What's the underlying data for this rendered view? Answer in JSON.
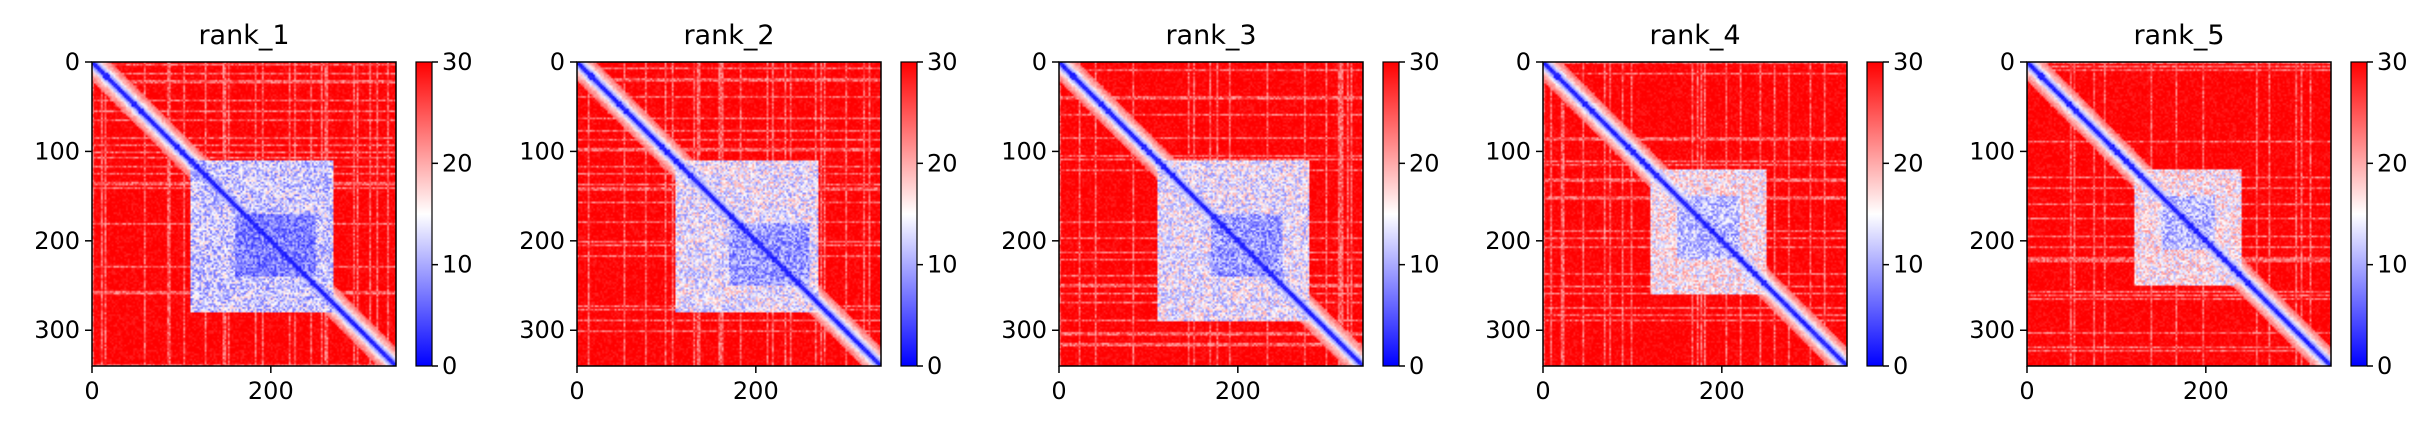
{
  "chart_data": [
    {
      "type": "heatmap",
      "title": "rank_1",
      "x_ticks": [
        0,
        200
      ],
      "y_ticks": [
        0,
        100,
        200,
        300
      ],
      "xlim": [
        0,
        340
      ],
      "ylim": [
        340,
        0
      ],
      "colorbar": {
        "ticks": [
          0,
          10,
          20,
          30
        ],
        "range": [
          0,
          30
        ],
        "colormap": "bwr"
      },
      "matrix_size": 340,
      "diagonal_band": true,
      "low_value_blocks": [
        {
          "x0": 110,
          "x1": 270,
          "y0": 110,
          "y1": 280,
          "min": 6,
          "max": 18
        },
        {
          "x0": 160,
          "x1": 250,
          "y0": 170,
          "y1": 240,
          "min": 3,
          "max": 12
        }
      ]
    },
    {
      "type": "heatmap",
      "title": "rank_2",
      "x_ticks": [
        0,
        200
      ],
      "y_ticks": [
        0,
        100,
        200,
        300
      ],
      "xlim": [
        0,
        340
      ],
      "ylim": [
        340,
        0
      ],
      "colorbar": {
        "ticks": [
          0,
          10,
          20,
          30
        ],
        "range": [
          0,
          30
        ],
        "colormap": "bwr"
      },
      "matrix_size": 340,
      "diagonal_band": true,
      "low_value_blocks": [
        {
          "x0": 110,
          "x1": 270,
          "y0": 110,
          "y1": 280,
          "min": 8,
          "max": 20
        },
        {
          "x0": 170,
          "x1": 260,
          "y0": 180,
          "y1": 250,
          "min": 4,
          "max": 14
        }
      ]
    },
    {
      "type": "heatmap",
      "title": "rank_3",
      "x_ticks": [
        0,
        200
      ],
      "y_ticks": [
        0,
        100,
        200,
        300
      ],
      "xlim": [
        0,
        340
      ],
      "ylim": [
        340,
        0
      ],
      "colorbar": {
        "ticks": [
          0,
          10,
          20,
          30
        ],
        "range": [
          0,
          30
        ],
        "colormap": "bwr"
      },
      "matrix_size": 340,
      "diagonal_band": true,
      "low_value_blocks": [
        {
          "x0": 110,
          "x1": 280,
          "y0": 110,
          "y1": 290,
          "min": 8,
          "max": 20
        },
        {
          "x0": 170,
          "x1": 250,
          "y0": 170,
          "y1": 240,
          "min": 4,
          "max": 14
        }
      ]
    },
    {
      "type": "heatmap",
      "title": "rank_4",
      "x_ticks": [
        0,
        200
      ],
      "y_ticks": [
        0,
        100,
        200,
        300
      ],
      "xlim": [
        0,
        340
      ],
      "ylim": [
        340,
        0
      ],
      "colorbar": {
        "ticks": [
          0,
          10,
          20,
          30
        ],
        "range": [
          0,
          30
        ],
        "colormap": "bwr"
      },
      "matrix_size": 340,
      "diagonal_band": true,
      "low_value_blocks": [
        {
          "x0": 120,
          "x1": 250,
          "y0": 120,
          "y1": 260,
          "min": 10,
          "max": 22
        },
        {
          "x0": 150,
          "x1": 220,
          "y0": 150,
          "y1": 220,
          "min": 6,
          "max": 16
        }
      ]
    },
    {
      "type": "heatmap",
      "title": "rank_5",
      "x_ticks": [
        0,
        200
      ],
      "y_ticks": [
        0,
        100,
        200,
        300
      ],
      "xlim": [
        0,
        340
      ],
      "ylim": [
        340,
        0
      ],
      "colorbar": {
        "ticks": [
          0,
          10,
          20,
          30
        ],
        "range": [
          0,
          30
        ],
        "colormap": "bwr"
      },
      "matrix_size": 340,
      "diagonal_band": true,
      "low_value_blocks": [
        {
          "x0": 120,
          "x1": 240,
          "y0": 120,
          "y1": 250,
          "min": 10,
          "max": 22
        },
        {
          "x0": 150,
          "x1": 210,
          "y0": 150,
          "y1": 210,
          "min": 6,
          "max": 16
        }
      ]
    }
  ],
  "colors": {
    "low": "#0000ff",
    "mid": "#ffffff",
    "high": "#ff0000",
    "axis": "#000000"
  }
}
